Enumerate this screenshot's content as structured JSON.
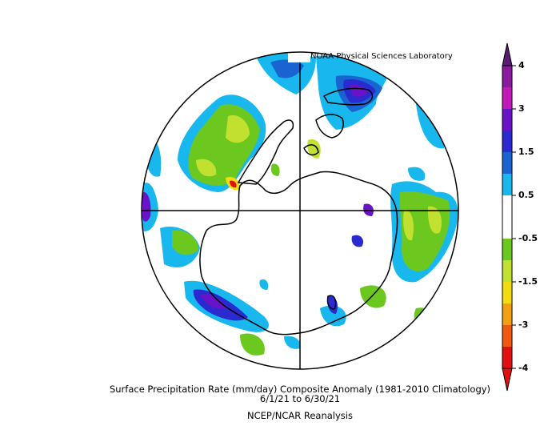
{
  "credit": "NOAA Physical Sciences Laboratory",
  "caption": {
    "line1": "Surface Precipitation Rate (mm/day) Composite Anomaly (1981-2010 Climatology)",
    "line2": "6/1/21  to 6/30/21",
    "line3": "NCEP/NCAR Reanalysis"
  },
  "colorbar": {
    "labels": [
      "4",
      "3",
      "1.5",
      "0.5",
      "-0.5",
      "-1.5",
      "-3",
      "-4"
    ],
    "colors": {
      "top_arrow": "#5a1a6e",
      "purple_dark": "#8a1aa0",
      "magenta": "#c21ab8",
      "indigo": "#6a12c8",
      "blue_dark": "#2a2ad0",
      "blue": "#1a64d2",
      "cyan": "#18b8ee",
      "white": "#ffffff",
      "green": "#6cc81e",
      "yellow_green": "#c2e030",
      "yellow": "#f2dc10",
      "orange": "#f2a010",
      "red_orange": "#f05a10",
      "red": "#e01010"
    }
  },
  "map": {
    "projection": "south-polar-stereographic",
    "coastline_color": "#000000"
  }
}
